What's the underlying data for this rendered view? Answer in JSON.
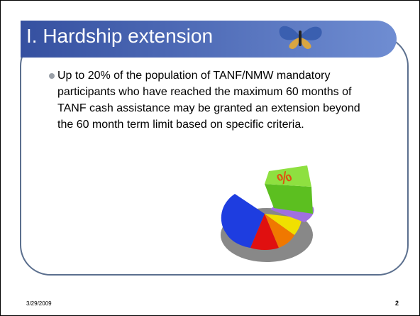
{
  "slide": {
    "title": "I. Hardship extension",
    "bullets": [
      "Up to 20% of the population of TANF/NMW mandatory participants who have reached the maximum 60 months of TANF cash assistance may be granted an extension beyond the 60 month term limit based on specific criteria."
    ],
    "footer": {
      "date": "3/29/2009",
      "page": "2"
    }
  }
}
